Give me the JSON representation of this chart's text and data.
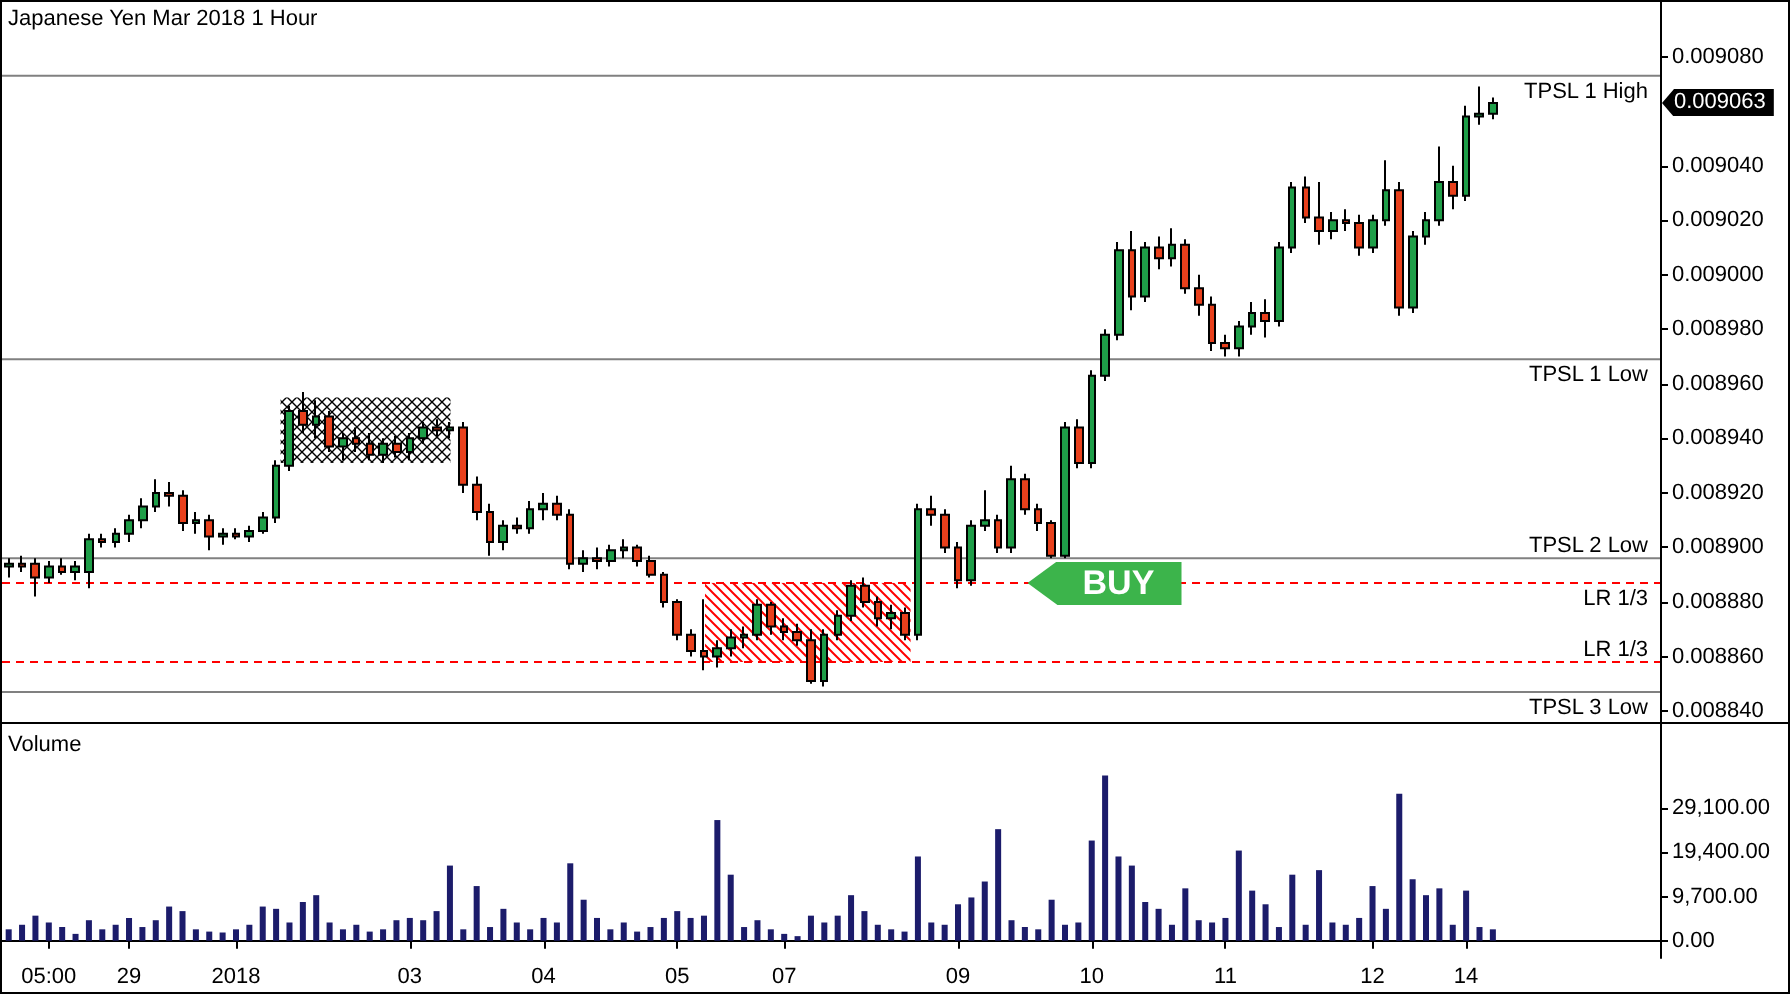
{
  "chart_data": [
    {
      "type": "candlestick",
      "title": "Japanese Yen Mar 2018 1 Hour",
      "categories": [
        null,
        null,
        null,
        null,
        null,
        null,
        null,
        null,
        null,
        null,
        null,
        null,
        null,
        null,
        null,
        null,
        null,
        null,
        null,
        null,
        null,
        null,
        null,
        null,
        null,
        null,
        null,
        null,
        null,
        null,
        null,
        null,
        null,
        null,
        null,
        null,
        null,
        null,
        null,
        null,
        null,
        null,
        null,
        null,
        null,
        null,
        null,
        null,
        null,
        null,
        null,
        null,
        null,
        null,
        null,
        null,
        null,
        null,
        null,
        null,
        null,
        null,
        null,
        null,
        null,
        null,
        null,
        null,
        null,
        null,
        null,
        null,
        null,
        null,
        null,
        null,
        null,
        null,
        null,
        null,
        null,
        null,
        null,
        null,
        null,
        null,
        null,
        null,
        null,
        null,
        null,
        null,
        null,
        null,
        null,
        null,
        null,
        null,
        null,
        null,
        null,
        null,
        null,
        null,
        null,
        null,
        null,
        null,
        null,
        null,
        null,
        null,
        null,
        null,
        null,
        null,
        null,
        null,
        null,
        null,
        null,
        null,
        null,
        null
      ],
      "ohlc": [
        [
          0.008893,
          0.008896,
          0.008889,
          0.008894
        ],
        [
          0.008894,
          0.008897,
          0.008891,
          0.008893
        ],
        [
          0.008894,
          0.008896,
          0.008882,
          0.008889
        ],
        [
          0.008889,
          0.008895,
          0.008887,
          0.008893
        ],
        [
          0.008893,
          0.008896,
          0.00889,
          0.008891
        ],
        [
          0.008891,
          0.008895,
          0.008888,
          0.008893
        ],
        [
          0.008891,
          0.008905,
          0.008885,
          0.008903
        ],
        [
          0.008903,
          0.008905,
          0.0089,
          0.008902
        ],
        [
          0.008902,
          0.008907,
          0.0089,
          0.008905
        ],
        [
          0.008905,
          0.008912,
          0.008902,
          0.00891
        ],
        [
          0.00891,
          0.008918,
          0.008907,
          0.008915
        ],
        [
          0.008915,
          0.008925,
          0.008913,
          0.00892
        ],
        [
          0.00892,
          0.008924,
          0.008915,
          0.008919
        ],
        [
          0.008919,
          0.008921,
          0.008906,
          0.008909
        ],
        [
          0.008909,
          0.008913,
          0.008905,
          0.00891
        ],
        [
          0.00891,
          0.008912,
          0.008899,
          0.008904
        ],
        [
          0.008904,
          0.008907,
          0.008901,
          0.008905
        ],
        [
          0.008905,
          0.008907,
          0.008903,
          0.008904
        ],
        [
          0.008904,
          0.008908,
          0.008902,
          0.008906
        ],
        [
          0.008906,
          0.008913,
          0.008905,
          0.008911
        ],
        [
          0.008911,
          0.008932,
          0.008909,
          0.00893
        ],
        [
          0.00893,
          0.008952,
          0.008928,
          0.00895
        ],
        [
          0.00895,
          0.008957,
          0.008942,
          0.008945
        ],
        [
          0.008945,
          0.008954,
          0.00894,
          0.008948
        ],
        [
          0.008948,
          0.00895,
          0.008935,
          0.008937
        ],
        [
          0.008937,
          0.008942,
          0.008932,
          0.00894
        ],
        [
          0.00894,
          0.008944,
          0.008935,
          0.008938
        ],
        [
          0.008938,
          0.008942,
          0.008932,
          0.008934
        ],
        [
          0.008934,
          0.00894,
          0.008931,
          0.008938
        ],
        [
          0.008938,
          0.008941,
          0.008933,
          0.008935
        ],
        [
          0.008935,
          0.008942,
          0.008932,
          0.00894
        ],
        [
          0.00894,
          0.008946,
          0.008938,
          0.008944
        ],
        [
          0.008944,
          0.008947,
          0.00894,
          0.008943
        ],
        [
          0.008943,
          0.008946,
          0.00894,
          0.008944
        ],
        [
          0.008944,
          0.008946,
          0.00892,
          0.008923
        ],
        [
          0.008923,
          0.008926,
          0.00891,
          0.008913
        ],
        [
          0.008913,
          0.008916,
          0.008897,
          0.008902
        ],
        [
          0.008902,
          0.00891,
          0.008899,
          0.008908
        ],
        [
          0.008908,
          0.008911,
          0.008905,
          0.008907
        ],
        [
          0.008907,
          0.008917,
          0.008905,
          0.008914
        ],
        [
          0.008914,
          0.00892,
          0.00891,
          0.008916
        ],
        [
          0.008916,
          0.008919,
          0.00891,
          0.008912
        ],
        [
          0.008912,
          0.008914,
          0.008892,
          0.008894
        ],
        [
          0.008894,
          0.008899,
          0.008891,
          0.008896
        ],
        [
          0.008896,
          0.0089,
          0.008892,
          0.008895
        ],
        [
          0.008895,
          0.008901,
          0.008893,
          0.008899
        ],
        [
          0.008899,
          0.008903,
          0.008896,
          0.0089
        ],
        [
          0.0089,
          0.008901,
          0.008893,
          0.008895
        ],
        [
          0.008895,
          0.008897,
          0.008889,
          0.00889
        ],
        [
          0.00889,
          0.008891,
          0.008878,
          0.00888
        ],
        [
          0.00888,
          0.008881,
          0.008866,
          0.008868
        ],
        [
          0.008868,
          0.00887,
          0.00886,
          0.008862
        ],
        [
          0.008862,
          0.008881,
          0.008855,
          0.00886
        ],
        [
          0.00886,
          0.008866,
          0.008856,
          0.008863
        ],
        [
          0.008863,
          0.00887,
          0.00886,
          0.008867
        ],
        [
          0.008867,
          0.008871,
          0.008863,
          0.008868
        ],
        [
          0.008868,
          0.008881,
          0.008866,
          0.008879
        ],
        [
          0.008879,
          0.00888,
          0.008868,
          0.008871
        ],
        [
          0.008871,
          0.008874,
          0.008866,
          0.008869
        ],
        [
          0.008869,
          0.008872,
          0.008864,
          0.008866
        ],
        [
          0.008866,
          0.00887,
          0.00885,
          0.008851
        ],
        [
          0.008851,
          0.00887,
          0.008849,
          0.008868
        ],
        [
          0.008868,
          0.008877,
          0.008866,
          0.008875
        ],
        [
          0.008875,
          0.008888,
          0.008873,
          0.008886
        ],
        [
          0.008886,
          0.008889,
          0.008878,
          0.00888
        ],
        [
          0.00888,
          0.008882,
          0.008871,
          0.008874
        ],
        [
          0.008874,
          0.008879,
          0.00887,
          0.008876
        ],
        [
          0.008876,
          0.008878,
          0.008866,
          0.008868
        ],
        [
          0.008868,
          0.008916,
          0.008866,
          0.008914
        ],
        [
          0.008914,
          0.008919,
          0.008908,
          0.008912
        ],
        [
          0.008912,
          0.008914,
          0.008898,
          0.0089
        ],
        [
          0.0089,
          0.008902,
          0.008885,
          0.008888
        ],
        [
          0.008888,
          0.00891,
          0.008886,
          0.008908
        ],
        [
          0.008908,
          0.008921,
          0.008906,
          0.00891
        ],
        [
          0.00891,
          0.008912,
          0.008898,
          0.0089
        ],
        [
          0.0089,
          0.00893,
          0.008898,
          0.008925
        ],
        [
          0.008925,
          0.008927,
          0.008912,
          0.008914
        ],
        [
          0.008914,
          0.008916,
          0.008906,
          0.008909
        ],
        [
          0.008909,
          0.00891,
          0.008896,
          0.008897
        ],
        [
          0.008897,
          0.008946,
          0.008896,
          0.008944
        ],
        [
          0.008944,
          0.008947,
          0.008929,
          0.008931
        ],
        [
          0.008931,
          0.008965,
          0.008929,
          0.008963
        ],
        [
          0.008963,
          0.00898,
          0.008961,
          0.008978
        ],
        [
          0.008978,
          0.009012,
          0.008976,
          0.009009
        ],
        [
          0.009009,
          0.009016,
          0.008987,
          0.008992
        ],
        [
          0.008992,
          0.009012,
          0.00899,
          0.00901
        ],
        [
          0.00901,
          0.009014,
          0.009002,
          0.009006
        ],
        [
          0.009006,
          0.009017,
          0.009003,
          0.009011
        ],
        [
          0.009011,
          0.009013,
          0.008993,
          0.008995
        ],
        [
          0.008995,
          0.009,
          0.008985,
          0.008989
        ],
        [
          0.008989,
          0.008992,
          0.008972,
          0.008975
        ],
        [
          0.008975,
          0.008978,
          0.00897,
          0.008973
        ],
        [
          0.008973,
          0.008983,
          0.00897,
          0.008981
        ],
        [
          0.008981,
          0.00899,
          0.008978,
          0.008986
        ],
        [
          0.008986,
          0.008991,
          0.008977,
          0.008983
        ],
        [
          0.008983,
          0.009012,
          0.008981,
          0.00901
        ],
        [
          0.00901,
          0.009034,
          0.009008,
          0.009032
        ],
        [
          0.009032,
          0.009036,
          0.009019,
          0.009021
        ],
        [
          0.009021,
          0.009034,
          0.009011,
          0.009016
        ],
        [
          0.009016,
          0.009023,
          0.009013,
          0.00902
        ],
        [
          0.00902,
          0.009024,
          0.009016,
          0.009019
        ],
        [
          0.009019,
          0.009022,
          0.009007,
          0.00901
        ],
        [
          0.00901,
          0.009022,
          0.009008,
          0.00902
        ],
        [
          0.00902,
          0.009042,
          0.009018,
          0.009031
        ],
        [
          0.009031,
          0.009034,
          0.008985,
          0.008988
        ],
        [
          0.008988,
          0.009016,
          0.008986,
          0.009014
        ],
        [
          0.009014,
          0.009023,
          0.009011,
          0.00902
        ],
        [
          0.00902,
          0.009047,
          0.009018,
          0.009034
        ],
        [
          0.009034,
          0.00904,
          0.009024,
          0.009029
        ],
        [
          0.009029,
          0.009062,
          0.009027,
          0.009058
        ],
        [
          0.009058,
          0.009069,
          0.009055,
          0.009059
        ],
        [
          0.009059,
          0.009065,
          0.009057,
          0.009063
        ],
        null,
        null,
        null,
        null,
        null,
        null,
        null,
        null,
        null,
        null,
        null,
        null
      ],
      "colors": [
        "#1e9e48",
        "#e8401c",
        "#e8401c",
        "#1e9e48",
        "#e8401c",
        "#1e9e48",
        "#1e9e48",
        "#e8401c",
        "#1e9e48",
        "#1e9e48",
        "#1e9e48",
        "#1e9e48",
        "#e8401c",
        "#e8401c",
        "#1e9e48",
        "#e8401c",
        "#1e9e48",
        "#e8401c",
        "#1e9e48",
        "#1e9e48",
        "#1e9e48",
        "#1e9e48",
        "#e8401c",
        "#1e9e48",
        "#e8401c",
        "#1e9e48",
        "#e8401c",
        "#e8401c",
        "#1e9e48",
        "#e8401c",
        "#1e9e48",
        "#1e9e48",
        "#e8401c",
        "#1e9e48",
        "#e8401c",
        "#e8401c",
        "#e8401c",
        "#1e9e48",
        "#e8401c",
        "#1e9e48",
        "#1e9e48",
        "#e8401c",
        "#e8401c",
        "#1e9e48",
        "#e8401c",
        "#1e9e48",
        "#1e9e48",
        "#e8401c",
        "#e8401c",
        "#e8401c",
        "#e8401c",
        "#e8401c",
        "#e8401c",
        "#1e9e48",
        "#1e9e48",
        "#1e9e48",
        "#1e9e48",
        "#e8401c",
        "#e8401c",
        "#e8401c",
        "#e8401c",
        "#1e9e48",
        "#1e9e48",
        "#1e9e48",
        "#e8401c",
        "#e8401c",
        "#1e9e48",
        "#e8401c",
        "#1e9e48",
        "#e8401c",
        "#e8401c",
        "#e8401c",
        "#1e9e48",
        "#1e9e48",
        "#e8401c",
        "#1e9e48",
        "#e8401c",
        "#e8401c",
        "#e8401c",
        "#1e9e48",
        "#e8401c",
        "#1e9e48",
        "#1e9e48",
        "#1e9e48",
        "#e8401c",
        "#1e9e48",
        "#e8401c",
        "#1e9e48",
        "#e8401c",
        "#e8401c",
        "#e8401c",
        "#e8401c",
        "#1e9e48",
        "#1e9e48",
        "#e8401c",
        "#1e9e48",
        "#1e9e48",
        "#e8401c",
        "#e8401c",
        "#1e9e48",
        "#e8401c",
        "#e8401c",
        "#1e9e48",
        "#1e9e48",
        "#e8401c",
        "#1e9e48",
        "#1e9e48",
        "#1e9e48",
        "#e8401c",
        "#1e9e48",
        "#1e9e48",
        "#1e9e48",
        null,
        null,
        null,
        null,
        null,
        null,
        null,
        null,
        null,
        null,
        null,
        null
      ],
      "ylim": [
        0.008836,
        0.0091
      ],
      "yticks": [
        {
          "value": 0.00884,
          "label": "0.008840"
        },
        {
          "value": 0.00886,
          "label": "0.008860"
        },
        {
          "value": 0.00888,
          "label": "0.008880"
        },
        {
          "value": 0.0089,
          "label": "0.008900"
        },
        {
          "value": 0.00892,
          "label": "0.008920"
        },
        {
          "value": 0.00894,
          "label": "0.008940"
        },
        {
          "value": 0.00896,
          "label": "0.008960"
        },
        {
          "value": 0.00898,
          "label": "0.008980"
        },
        {
          "value": 0.009,
          "label": "0.009000"
        },
        {
          "value": 0.00902,
          "label": "0.009020"
        },
        {
          "value": 0.00904,
          "label": "0.009040"
        },
        {
          "value": 0.00908,
          "label": "0.009080"
        }
      ],
      "ref_lines": [
        {
          "axis": "y",
          "value": 0.009073,
          "label": "TPSL 1 High",
          "color": "#808080",
          "line_style": "solid"
        },
        {
          "axis": "y",
          "value": 0.008969,
          "label": "TPSL 1 Low",
          "color": "#808080",
          "line_style": "solid"
        },
        {
          "axis": "y",
          "value": 0.008896,
          "label": "TPSL 2 Low",
          "color": "#808080",
          "line_style": "solid"
        },
        {
          "axis": "y",
          "value": 0.008887,
          "label": "LR 1/3",
          "color": "#ff0000",
          "line_style": "dashed"
        },
        {
          "axis": "y",
          "value": 0.008858,
          "label": "LR 1/3",
          "color": "#ff0000",
          "line_style": "dashed"
        },
        {
          "axis": "y",
          "value": 0.008847,
          "label": "TPSL 3 Low",
          "color": "#808080",
          "line_style": "solid"
        }
      ],
      "bands": [
        {
          "axis": "y",
          "from": 0.008931,
          "to": 0.008955,
          "color": "#000000"
        },
        {
          "axis": "y",
          "from": 0.008858,
          "to": 0.008887,
          "color": "#ff0000"
        }
      ],
      "annotations": [
        "0.009063",
        "BUY"
      ]
    },
    {
      "type": "bar",
      "title": "Volume",
      "categories": [
        null,
        null,
        null,
        "05:00",
        null,
        null,
        null,
        null,
        null,
        "29",
        null,
        null,
        null,
        null,
        null,
        null,
        null,
        "2018",
        null,
        null,
        null,
        null,
        null,
        null,
        null,
        null,
        null,
        null,
        null,
        null,
        "03",
        null,
        null,
        null,
        null,
        null,
        null,
        null,
        null,
        null,
        "04",
        null,
        null,
        null,
        null,
        null,
        null,
        null,
        null,
        null,
        "05",
        null,
        null,
        null,
        null,
        null,
        null,
        null,
        "07",
        null,
        null,
        null,
        null,
        null,
        null,
        null,
        null,
        null,
        null,
        null,
        null,
        "09",
        null,
        null,
        null,
        null,
        null,
        null,
        null,
        null,
        null,
        "10",
        null,
        null,
        null,
        null,
        null,
        null,
        null,
        null,
        null,
        "11",
        null,
        null,
        null,
        null,
        null,
        null,
        null,
        null,
        null,
        null,
        "12",
        null,
        null,
        null,
        null,
        null,
        null,
        "14",
        null,
        null,
        null,
        null,
        null,
        null,
        null,
        null,
        null,
        null,
        null,
        null,
        null,
        null
      ],
      "values": [
        2500,
        3500,
        5500,
        4000,
        3000,
        1500,
        4500,
        2500,
        3500,
        5000,
        3000,
        4500,
        7500,
        6500,
        2500,
        2000,
        1800,
        2500,
        3500,
        7500,
        7000,
        4000,
        8500,
        10000,
        4000,
        2500,
        3500,
        2000,
        2500,
        4500,
        5000,
        4500,
        6500,
        16500,
        2500,
        12000,
        3000,
        7000,
        4000,
        2500,
        5000,
        4000,
        17000,
        9000,
        5000,
        2500,
        4000,
        2000,
        3000,
        5000,
        6500,
        5000,
        5500,
        26500,
        14500,
        3000,
        4500,
        2500,
        1500,
        1000,
        5500,
        4000,
        5500,
        10000,
        6500,
        3500,
        2500,
        2000,
        18500,
        4000,
        3500,
        8000,
        9500,
        13000,
        24500,
        4500,
        3000,
        2500,
        9000,
        3500,
        4000,
        22000,
        36300,
        18500,
        16500,
        8500,
        7000,
        3500,
        11500,
        4500,
        4000,
        5000,
        19800,
        11000,
        8000,
        3000,
        14500,
        3500,
        15500,
        4000,
        3500,
        5000,
        12000,
        7000,
        32300,
        13500,
        10000,
        11500,
        3500,
        11000,
        3000,
        2500,
        null,
        null,
        null,
        null,
        null,
        null,
        null,
        null,
        null,
        null,
        null,
        null
      ],
      "color": "#1c1c6b",
      "ylim": [
        -3800,
        47600
      ],
      "yticks": [
        {
          "value": 0,
          "label": "0.00"
        },
        {
          "value": 9700,
          "label": "9,700.00"
        },
        {
          "value": 19400,
          "label": "19,400.00"
        },
        {
          "value": 29100,
          "label": "29,100.00"
        }
      ]
    }
  ]
}
